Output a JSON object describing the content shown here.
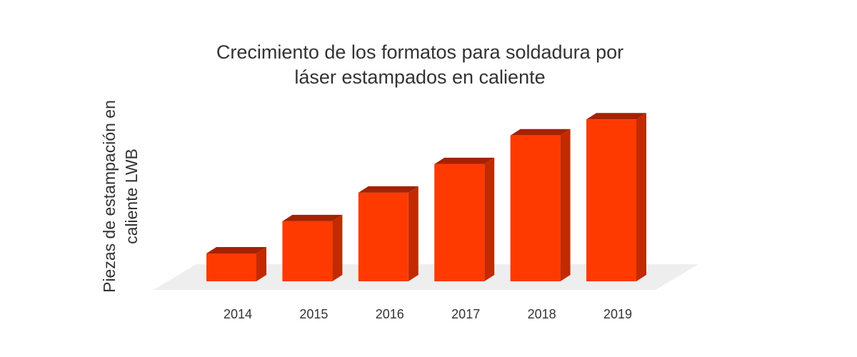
{
  "chart_data": {
    "type": "bar",
    "title": [
      "Crecimiento de los formatos para soldadura por",
      "láser estampados en caliente"
    ],
    "ylabel": [
      "Piezas de estampación en",
      "caliente LWB"
    ],
    "xlabel": "",
    "categories": [
      "2014",
      "2015",
      "2016",
      "2017",
      "2018",
      "2019"
    ],
    "values": [
      38,
      82,
      121,
      160,
      199,
      221
    ],
    "ylim": [
      0,
      230
    ],
    "grid": false,
    "legend": "none",
    "colors": {
      "front": "#ff3a00",
      "side": "#c42a00",
      "top": "#a52200",
      "floor": "#eeeeee"
    }
  }
}
